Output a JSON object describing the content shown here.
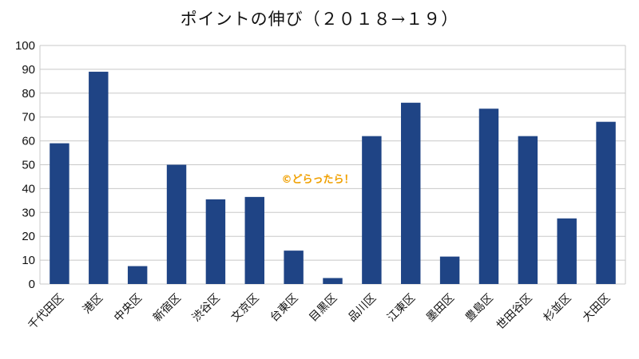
{
  "chart_data": {
    "type": "bar",
    "title": "ポイントの伸び（２０１８→１９）",
    "xlabel": "",
    "ylabel": "",
    "ylim": [
      0,
      100
    ],
    "yticks": [
      0,
      10,
      20,
      30,
      40,
      50,
      60,
      70,
      80,
      90,
      100
    ],
    "grid": true,
    "legend": "none",
    "categories": [
      "千代田区",
      "港区",
      "中央区",
      "新宿区",
      "渋谷区",
      "文京区",
      "台東区",
      "目黒区",
      "品川区",
      "江東区",
      "墨田区",
      "豊島区",
      "世田谷区",
      "杉並区",
      "大田区"
    ],
    "values": [
      59,
      89,
      7.5,
      50,
      35.5,
      36.5,
      14,
      2.5,
      62,
      76,
      11.5,
      73.5,
      62,
      27.5,
      68
    ],
    "bar_color": "#1f4485",
    "grid_color": "#c8c8c8",
    "watermark": "©どらったら！"
  }
}
